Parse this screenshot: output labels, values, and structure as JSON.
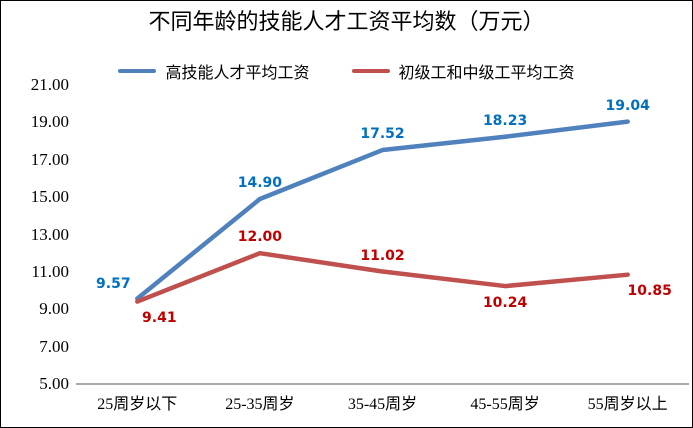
{
  "chart_data": {
    "type": "line",
    "title": "不同年龄的技能人才工资平均数（万元）",
    "categories": [
      "25周岁以下",
      "25-35周岁",
      "35-45周岁",
      "45-55周岁",
      "55周岁以上"
    ],
    "series": [
      {
        "name": "高技能人才平均工资",
        "color": "#4F81BD",
        "label_color": "#0070C0",
        "values": [
          9.57,
          14.9,
          17.52,
          18.23,
          19.04
        ],
        "labels": [
          "9.57",
          "14.90",
          "17.52",
          "18.23",
          "19.04"
        ],
        "label_positions": [
          "above-left",
          "above",
          "above",
          "above",
          "above"
        ]
      },
      {
        "name": "初级工和中级工平均工资",
        "color": "#C0504D",
        "label_color": "#C00000",
        "values": [
          9.41,
          12.0,
          11.02,
          10.24,
          10.85
        ],
        "labels": [
          "9.41",
          "12.00",
          "11.02",
          "10.24",
          "10.85"
        ],
        "label_positions": [
          "below-right",
          "above",
          "above",
          "below",
          "below-right"
        ]
      }
    ],
    "ylim": [
      5,
      21
    ],
    "yticks": [
      "21.00",
      "19.00",
      "17.00",
      "15.00",
      "13.00",
      "11.00",
      "9.00",
      "7.00",
      "5.00"
    ],
    "xlabel": "",
    "ylabel": "",
    "grid": false,
    "legend_position": "top",
    "axis_color": "#9E9E9E",
    "frame_color": "#000000"
  }
}
